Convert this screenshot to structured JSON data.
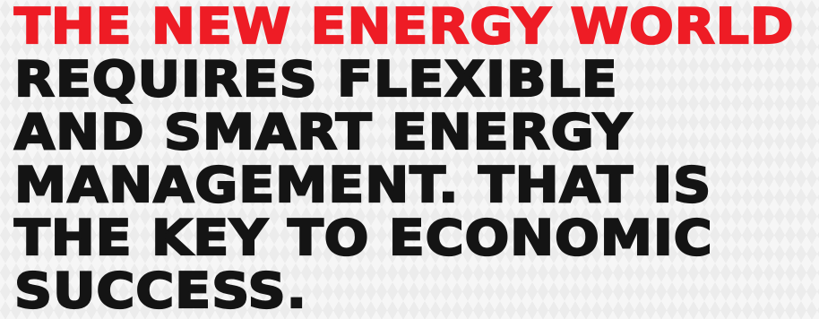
{
  "headline": {
    "line1": "THE NEW ENERGY WORLD",
    "line2": "REQUIRES FLEXIBLE",
    "line3": "AND SMART ENERGY",
    "line4": "MANAGEMENT. THAT IS",
    "line5": "THE KEY TO ECONOMIC",
    "line6": "SUCCESS."
  },
  "colors": {
    "accent": "#ee1c25",
    "text": "#141414",
    "background": "#ececec"
  }
}
